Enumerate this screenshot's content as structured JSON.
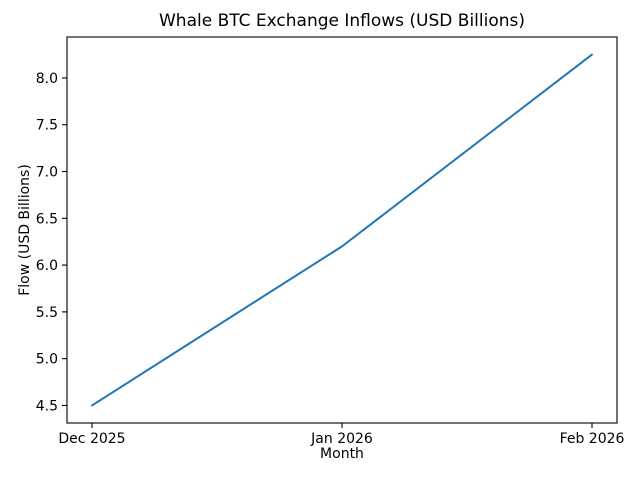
{
  "chart_data": {
    "type": "line",
    "title": "Whale BTC Exchange Inflows (USD Billions)",
    "xlabel": "Month",
    "ylabel": "Flow (USD Billions)",
    "categories": [
      "Dec 2025",
      "Jan 2026",
      "Feb 2026"
    ],
    "values": [
      4.5,
      6.2,
      8.25
    ],
    "y_ticks": [
      4.5,
      5.0,
      5.5,
      6.0,
      6.5,
      7.0,
      7.5,
      8.0
    ],
    "y_tick_labels": [
      "4.5",
      "5.0",
      "5.5",
      "6.0",
      "6.5",
      "7.0",
      "7.5",
      "8.0"
    ],
    "ylim": [
      4.3125,
      8.4375
    ],
    "grid": false,
    "legend": "none",
    "line_color": "#1f77b4",
    "axis_color": "#000000",
    "background_color": "#ffffff"
  }
}
